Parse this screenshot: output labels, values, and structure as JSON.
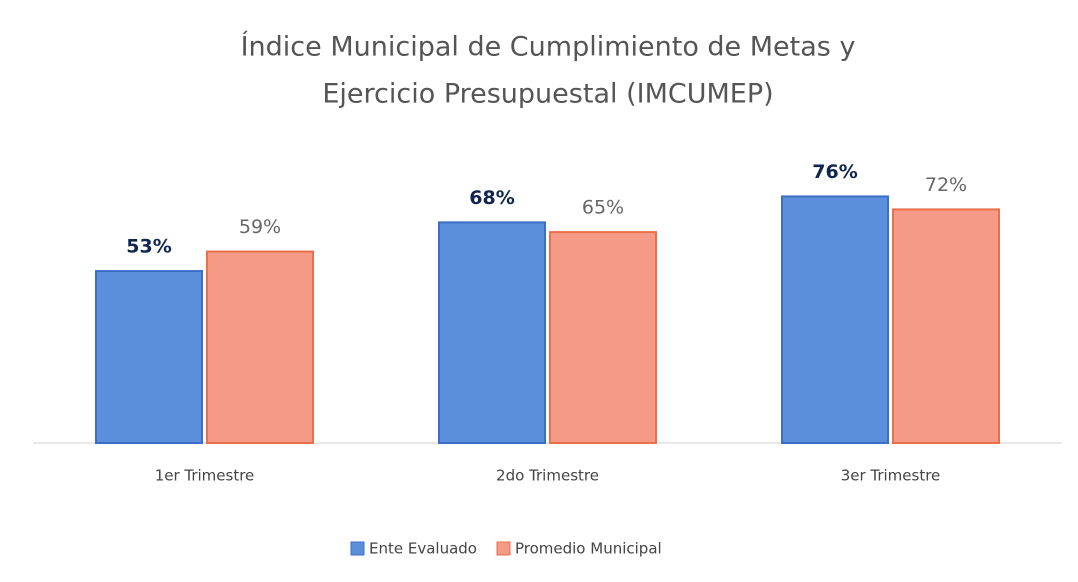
{
  "chart_data": {
    "type": "bar",
    "title": [
      "Índice Municipal de Cumplimiento de Metas y",
      "Ejercicio Presupuestal (IMCUMEP)"
    ],
    "categories": [
      "1er Trimestre",
      "2do Trimestre",
      "3er Trimestre"
    ],
    "series": [
      {
        "name": "Ente Evaluado",
        "color": "#5b8fdb",
        "values": [
          53,
          68,
          76
        ],
        "value_labels": [
          "53%",
          "68%",
          "76%"
        ]
      },
      {
        "name": "Promedio Municipal",
        "color": "#f59a86",
        "values": [
          59,
          65,
          72
        ],
        "value_labels": [
          "59%",
          "65%",
          "72%"
        ]
      }
    ],
    "ylim": [
      0,
      90
    ],
    "legend": "bottom"
  }
}
